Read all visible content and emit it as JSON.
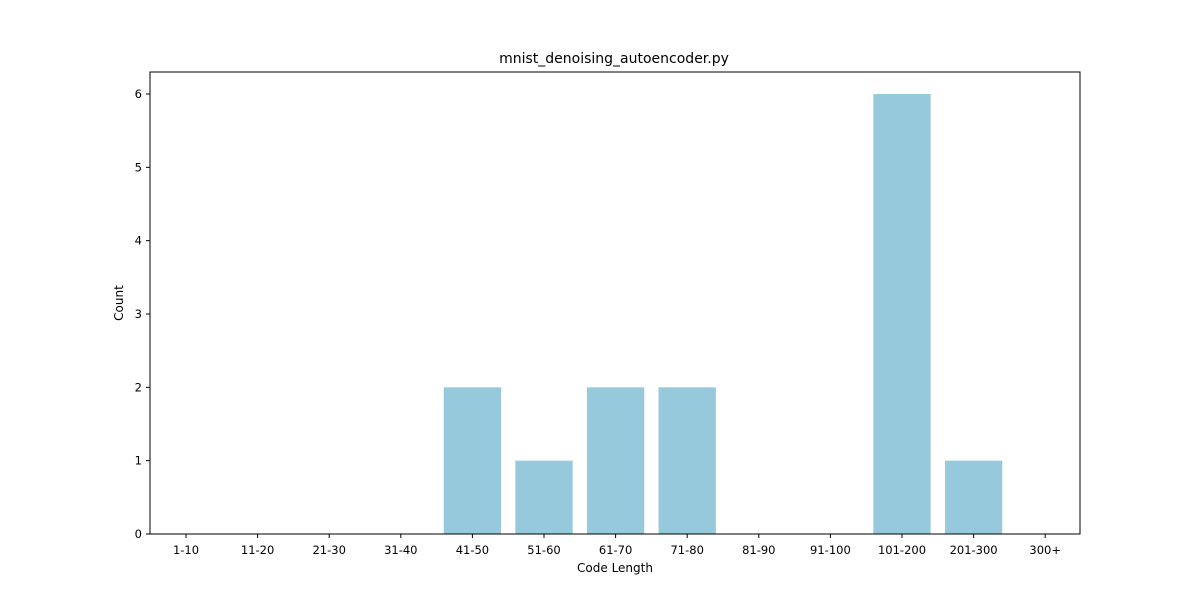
{
  "chart_data": {
    "type": "bar",
    "title": "mnist_denoising_autoencoder.py",
    "xlabel": "Code Length",
    "ylabel": "Count",
    "categories": [
      "1-10",
      "11-20",
      "21-30",
      "31-40",
      "41-50",
      "51-60",
      "61-70",
      "71-80",
      "81-90",
      "91-100",
      "101-200",
      "201-300",
      "300+"
    ],
    "values": [
      0,
      0,
      0,
      0,
      2,
      1,
      2,
      2,
      0,
      0,
      6,
      1,
      0
    ],
    "ylim": [
      0,
      6.3
    ],
    "yticks": [
      0,
      1,
      2,
      3,
      4,
      5,
      6
    ],
    "grid": false,
    "legend": "none",
    "bar_color": "#96c9dc"
  }
}
